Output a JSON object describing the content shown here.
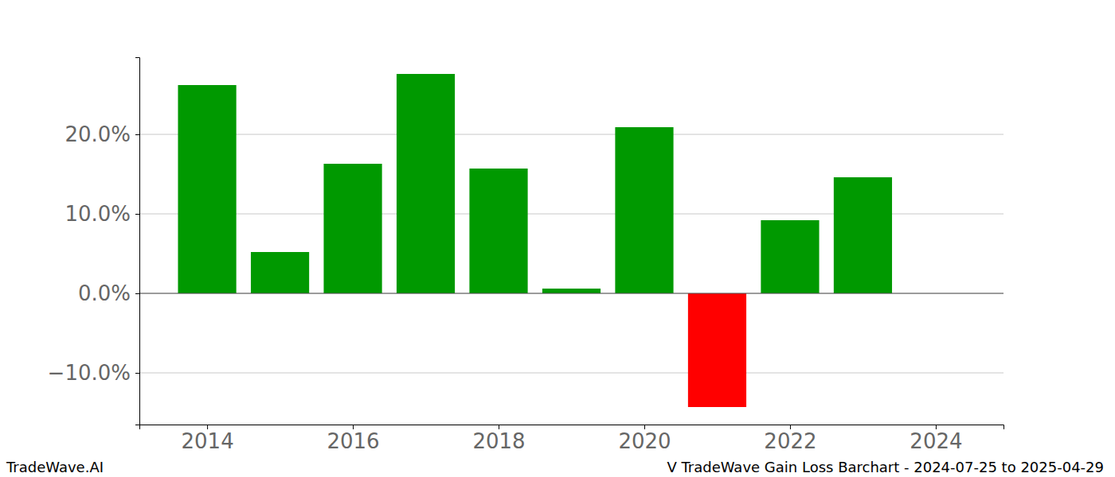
{
  "chart_data": {
    "type": "bar",
    "title": "V TradeWave Gain Loss Barchart - 2024-07-25 to 2025-04-29",
    "annotations": [
      "TradeWave.AI"
    ],
    "x": [
      2014,
      2015,
      2016,
      2017,
      2018,
      2019,
      2020,
      2021,
      2022,
      2023
    ],
    "values": [
      26.2,
      5.2,
      16.3,
      27.6,
      15.7,
      0.6,
      20.9,
      -14.3,
      9.2,
      14.6
    ],
    "colors": [
      "#009900",
      "#009900",
      "#009900",
      "#009900",
      "#009900",
      "#009900",
      "#009900",
      "#ff0000",
      "#009900",
      "#009900"
    ],
    "xlim": [
      2013.07,
      2024.93
    ],
    "xticks": [
      2014,
      2016,
      2018,
      2020,
      2022,
      2024
    ],
    "ylim": [
      -16.5,
      29.7
    ],
    "yticks": [
      {
        "value": -10,
        "label": "−10.0%"
      },
      {
        "value": 0,
        "label": "0.0%"
      },
      {
        "value": 10,
        "label": "10.0%"
      },
      {
        "value": 20,
        "label": "20.0%"
      }
    ],
    "grid": true
  }
}
